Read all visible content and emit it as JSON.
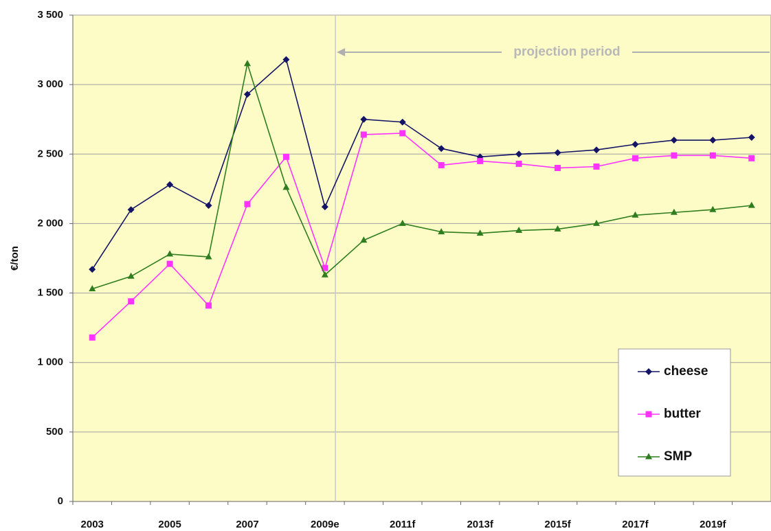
{
  "chart_data": {
    "type": "line",
    "ylabel": "€/ton",
    "annotation": "projection period",
    "categories": [
      "2003",
      null,
      "2005",
      null,
      "2007",
      null,
      "2009e",
      null,
      "2011f",
      null,
      "2013f",
      null,
      "2015f",
      null,
      "2017f",
      null,
      "2019f",
      null
    ],
    "series": [
      {
        "name": "cheese",
        "color": "#141466",
        "marker": "diamond",
        "values": [
          1670,
          2100,
          2280,
          2130,
          2930,
          3180,
          2120,
          2750,
          2730,
          2540,
          2480,
          2500,
          2510,
          2530,
          2570,
          2600,
          2600,
          2620
        ]
      },
      {
        "name": "butter",
        "color": "#ff33ff",
        "marker": "square",
        "values": [
          1180,
          1440,
          1710,
          1410,
          2140,
          2480,
          1680,
          2640,
          2650,
          2420,
          2450,
          2430,
          2400,
          2410,
          2470,
          2490,
          2490,
          2470
        ]
      },
      {
        "name": "SMP",
        "color": "#2e7d1e",
        "marker": "triangle",
        "values": [
          1530,
          1620,
          1780,
          1760,
          3150,
          2260,
          1630,
          1880,
          2000,
          1940,
          1930,
          1950,
          1960,
          2000,
          2060,
          2080,
          2100,
          2130
        ]
      }
    ],
    "ylim": [
      0,
      3500
    ],
    "yticks": [
      0,
      500,
      {
        "value": 1000,
        "label": "1 000"
      },
      {
        "value": 1500,
        "label": "1 500"
      },
      {
        "value": 2000,
        "label": "2 000"
      },
      {
        "value": 2500,
        "label": "2 500"
      },
      {
        "value": 3000,
        "label": "3 000"
      },
      {
        "value": 3500,
        "label": "3 500"
      }
    ],
    "grid": true
  }
}
